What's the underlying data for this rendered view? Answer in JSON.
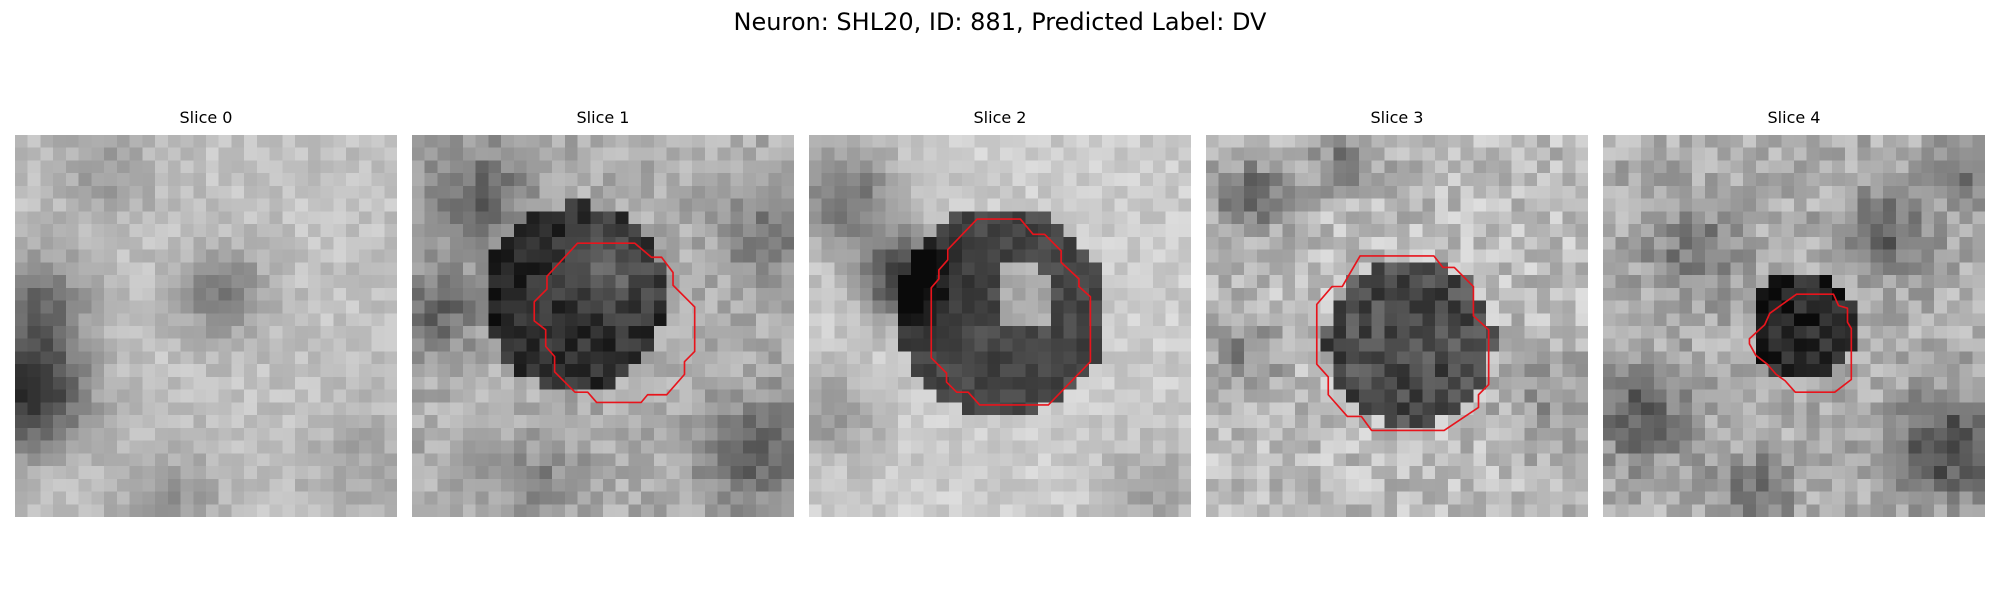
{
  "figure": {
    "title": "Neuron: SHL20, ID: 881, Predicted Label: DV"
  },
  "colors": {
    "roi_contour": "#e8141c",
    "grayscale_colormap": "gray"
  },
  "panels": [
    {
      "title": "Slice 0",
      "has_roi": false
    },
    {
      "title": "Slice 1",
      "has_roi": true
    },
    {
      "title": "Slice 2",
      "has_roi": true
    },
    {
      "title": "Slice 3",
      "has_roi": true
    },
    {
      "title": "Slice 4",
      "has_roi": true
    }
  ]
}
